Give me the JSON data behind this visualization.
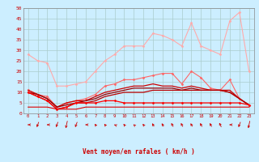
{
  "xlabel": "Vent moyen/en rafales ( km/h )",
  "background_color": "#cceeff",
  "grid_color": "#aacccc",
  "x": [
    0,
    1,
    2,
    3,
    4,
    5,
    6,
    7,
    8,
    9,
    10,
    11,
    12,
    13,
    14,
    15,
    16,
    17,
    18,
    19,
    20,
    21,
    22,
    23
  ],
  "ylim": [
    0,
    50
  ],
  "yticks": [
    0,
    5,
    10,
    15,
    20,
    25,
    30,
    35,
    40,
    45,
    50
  ],
  "series": [
    {
      "y": [
        28,
        25,
        24,
        13,
        13,
        14,
        15,
        20,
        25,
        28,
        32,
        32,
        32,
        38,
        37,
        35,
        32,
        43,
        32,
        30,
        28,
        44,
        48,
        20
      ],
      "color": "#ffaaaa",
      "lw": 0.8,
      "marker": "D",
      "ms": 1.5
    },
    {
      "y": [
        11,
        9,
        8,
        3,
        5,
        6,
        7,
        9,
        13,
        14,
        16,
        16,
        17,
        18,
        19,
        19,
        14,
        20,
        17,
        12,
        11,
        16,
        7,
        4
      ],
      "color": "#ff6666",
      "lw": 0.8,
      "marker": "D",
      "ms": 1.5
    },
    {
      "y": [
        11,
        9,
        7,
        3,
        5,
        6,
        6,
        8,
        10,
        11,
        12,
        13,
        13,
        14,
        13,
        13,
        12,
        13,
        12,
        11,
        11,
        11,
        7,
        4
      ],
      "color": "#cc0000",
      "lw": 0.9,
      "marker": null,
      "ms": 0
    },
    {
      "y": [
        10,
        9,
        7,
        3,
        4,
        5,
        6,
        7,
        9,
        10,
        11,
        12,
        12,
        12,
        12,
        12,
        11,
        12,
        11,
        11,
        11,
        10,
        7,
        4
      ],
      "color": "#990000",
      "lw": 0.9,
      "marker": null,
      "ms": 0
    },
    {
      "y": [
        10,
        8,
        6,
        2,
        3,
        5,
        5,
        6,
        8,
        9,
        10,
        10,
        10,
        11,
        11,
        11,
        11,
        11,
        11,
        11,
        11,
        10,
        7,
        4
      ],
      "color": "#bb0000",
      "lw": 0.9,
      "marker": null,
      "ms": 0
    },
    {
      "y": [
        10,
        8,
        6,
        2,
        3,
        5,
        5,
        5,
        6,
        6,
        5,
        5,
        5,
        5,
        5,
        5,
        5,
        5,
        5,
        5,
        5,
        5,
        5,
        4
      ],
      "color": "#ff0000",
      "lw": 0.9,
      "marker": "D",
      "ms": 1.5
    },
    {
      "y": [
        3,
        3,
        3,
        2,
        2,
        2,
        3,
        3,
        3,
        3,
        3,
        3,
        3,
        3,
        3,
        3,
        3,
        3,
        3,
        3,
        3,
        3,
        3,
        3
      ],
      "color": "#dd0000",
      "lw": 0.8,
      "marker": null,
      "ms": 0
    }
  ],
  "arrow_angles": [
    270,
    300,
    270,
    300,
    315,
    300,
    270,
    255,
    255,
    265,
    255,
    260,
    255,
    250,
    250,
    248,
    248,
    250,
    248,
    248,
    245,
    270,
    300,
    315
  ]
}
